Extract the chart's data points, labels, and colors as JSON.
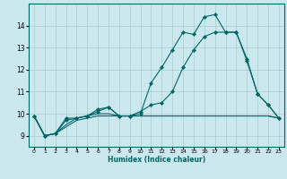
{
  "title": "",
  "xlabel": "Humidex (Indice chaleur)",
  "ylabel": "",
  "background_color": "#cce8ef",
  "grid_color": "#aacccc",
  "line_color": "#006666",
  "xlim": [
    -0.5,
    23.5
  ],
  "ylim": [
    8.5,
    15.0
  ],
  "yticks": [
    9,
    10,
    11,
    12,
    13,
    14
  ],
  "xticks": [
    0,
    1,
    2,
    3,
    4,
    5,
    6,
    7,
    8,
    9,
    10,
    11,
    12,
    13,
    14,
    15,
    16,
    17,
    18,
    19,
    20,
    21,
    22,
    23
  ],
  "series": [
    {
      "x": [
        0,
        1,
        2,
        3,
        4,
        5,
        6,
        7,
        8,
        9,
        10,
        11,
        12,
        13,
        14,
        15,
        16,
        17,
        18,
        19,
        20,
        21,
        22,
        23
      ],
      "y": [
        9.9,
        9.0,
        9.1,
        9.8,
        9.8,
        9.9,
        10.2,
        10.3,
        9.9,
        9.9,
        10.0,
        11.4,
        12.1,
        12.9,
        13.7,
        13.6,
        14.4,
        14.5,
        13.7,
        13.7,
        12.5,
        10.9,
        10.4,
        9.8
      ],
      "marker": true
    },
    {
      "x": [
        0,
        1,
        2,
        3,
        4,
        5,
        6,
        7,
        8,
        9,
        10,
        11,
        12,
        13,
        14,
        15,
        16,
        17,
        18,
        19,
        20,
        21,
        22,
        23
      ],
      "y": [
        9.9,
        9.0,
        9.1,
        9.7,
        9.8,
        9.9,
        10.1,
        10.3,
        9.9,
        9.9,
        10.1,
        10.4,
        10.5,
        11.0,
        12.1,
        12.9,
        13.5,
        13.7,
        13.7,
        13.7,
        12.4,
        10.9,
        10.4,
        9.8
      ],
      "marker": true
    },
    {
      "x": [
        0,
        1,
        2,
        3,
        4,
        5,
        6,
        7,
        8,
        9,
        10,
        11,
        12,
        13,
        14,
        15,
        16,
        17,
        18,
        19,
        20,
        21,
        22,
        23
      ],
      "y": [
        9.9,
        9.0,
        9.1,
        9.5,
        9.8,
        9.9,
        10.0,
        10.0,
        9.9,
        9.9,
        9.9,
        9.9,
        9.9,
        9.9,
        9.9,
        9.9,
        9.9,
        9.9,
        9.9,
        9.9,
        9.9,
        9.9,
        9.9,
        9.8
      ],
      "marker": false
    },
    {
      "x": [
        0,
        1,
        2,
        3,
        4,
        5,
        6,
        7,
        8,
        9,
        10,
        11,
        12,
        13,
        14,
        15,
        16,
        17,
        18,
        19,
        20,
        21,
        22,
        23
      ],
      "y": [
        9.9,
        9.0,
        9.1,
        9.4,
        9.7,
        9.8,
        9.9,
        9.9,
        9.9,
        9.9,
        9.9,
        9.9,
        9.9,
        9.9,
        9.9,
        9.9,
        9.9,
        9.9,
        9.9,
        9.9,
        9.9,
        9.9,
        9.9,
        9.8
      ],
      "marker": false
    }
  ]
}
